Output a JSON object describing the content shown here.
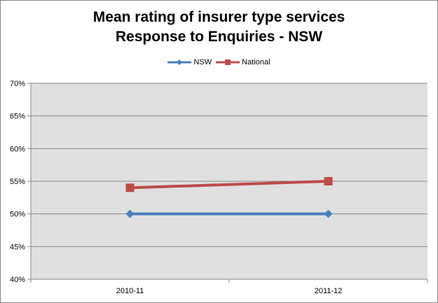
{
  "chart_data": {
    "type": "line",
    "title": [
      "Mean rating of insurer type services",
      "Response to Enquiries - NSW"
    ],
    "categories": [
      "2010-11",
      "2011-12"
    ],
    "series": [
      {
        "name": "NSW",
        "values": [
          50,
          50
        ],
        "color": "#4a7ebb",
        "marker": "diamond"
      },
      {
        "name": "National",
        "values": [
          54,
          55
        ],
        "color": "#be4b48",
        "marker": "square"
      }
    ],
    "ylim": [
      40,
      70
    ],
    "y_ticks": [
      40,
      45,
      50,
      55,
      60,
      65,
      70
    ],
    "y_tick_labels": [
      "40%",
      "45%",
      "50%",
      "55%",
      "60%",
      "65%",
      "70%"
    ],
    "xlabel": "",
    "ylabel": "",
    "grid": true,
    "legend_position": "top",
    "plot_background": "#e0e0e0"
  }
}
